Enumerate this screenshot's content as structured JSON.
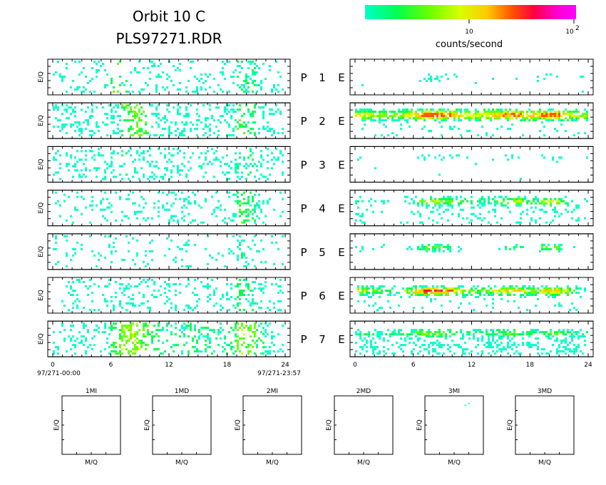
{
  "header": {
    "title_line1": "Orbit 10 C",
    "title_line2": "PLS97271.RDR"
  },
  "colorbar": {
    "tick_10": "10",
    "tick_100_base": "10",
    "tick_100_exp": "2",
    "label": "counts/second",
    "colors": [
      "#00ffc8",
      "#00ff50",
      "#66ff00",
      "#d8ff00",
      "#ffc800",
      "#ff5000",
      "#ff0040",
      "#ff00c8",
      "#ff00ff"
    ]
  },
  "chart_data": {
    "type": "heatmap",
    "colorbar_scale": "log",
    "colorbar_range": [
      1,
      100
    ],
    "colorbar_unit": "counts/second",
    "x_ticks": [
      "0",
      "6",
      "12",
      "18",
      "24"
    ],
    "x_range": [
      0,
      24
    ],
    "left_y_label": "E/Q",
    "left_start_time": "97/271-00:00",
    "left_end_time": "97/271-23:57",
    "rows": [
      {
        "p": "P",
        "n": "1",
        "e": "E",
        "left_density": [
          0.2,
          0.25,
          0.22,
          0.18,
          0.24,
          0.2,
          0.22,
          0.25,
          0.2,
          0.22,
          0.24,
          0.2,
          0.18,
          0.2,
          0.22,
          0.24,
          0.2,
          0.22,
          0.25,
          0.45,
          0.4,
          0.22,
          0.2,
          0.15
        ],
        "left_intensity": [
          0.05,
          0.05,
          0.05,
          0.05,
          0.05,
          0.05,
          0.2,
          0.1,
          0.05,
          0.05,
          0.05,
          0.05,
          0.05,
          0.05,
          0.05,
          0.05,
          0.05,
          0.05,
          0.05,
          0.1,
          0.1,
          0.05,
          0.05,
          0.05
        ],
        "right_band_pos": 0.5,
        "right_band_width": 0.1,
        "right_density": [
          0,
          0,
          0,
          0,
          0,
          0.05,
          0.25,
          0.3,
          0.3,
          0.1,
          0.05,
          0.0,
          0.0,
          0.0,
          0.05,
          0.2,
          0.2,
          0.05,
          0.1,
          0.15,
          0.15,
          0.05,
          0.05,
          0.1
        ],
        "right_intensity": [
          0,
          0,
          0,
          0,
          0,
          0,
          0.05,
          0.05,
          0.05,
          0,
          0,
          0,
          0,
          0,
          0,
          0.05,
          0.05,
          0,
          0,
          0.05,
          0.05,
          0,
          0,
          0
        ],
        "right_scatter": 0.01
      },
      {
        "p": "P",
        "n": "2",
        "e": "E",
        "left_density": [
          0.35,
          0.4,
          0.38,
          0.4,
          0.35,
          0.4,
          0.45,
          0.6,
          0.6,
          0.55,
          0.45,
          0.4,
          0.35,
          0.4,
          0.38,
          0.35,
          0.4,
          0.38,
          0.45,
          0.55,
          0.5,
          0.4,
          0.35,
          0.3
        ],
        "left_intensity": [
          0.05,
          0.05,
          0.05,
          0.05,
          0.05,
          0.05,
          0.05,
          0.2,
          0.25,
          0.2,
          0.05,
          0.05,
          0.05,
          0.05,
          0.05,
          0.05,
          0.05,
          0.05,
          0.05,
          0.2,
          0.15,
          0.05,
          0.05,
          0.05
        ],
        "right_band_pos": 0.3,
        "right_band_width": 0.2,
        "right_density": [
          0.95,
          0.95,
          0.9,
          0.85,
          0.8,
          0.9,
          0.95,
          0.95,
          0.95,
          0.95,
          0.9,
          0.85,
          0.85,
          0.9,
          0.95,
          0.95,
          0.95,
          0.9,
          0.9,
          0.95,
          0.95,
          0.9,
          0.9,
          0.85
        ],
        "right_intensity": [
          0.45,
          0.4,
          0.35,
          0.35,
          0.35,
          0.5,
          0.65,
          0.75,
          0.7,
          0.65,
          0.55,
          0.45,
          0.45,
          0.5,
          0.55,
          0.65,
          0.7,
          0.55,
          0.55,
          0.65,
          0.7,
          0.55,
          0.45,
          0.35
        ],
        "right_scatter": 0.08
      },
      {
        "p": "P",
        "n": "3",
        "e": "E",
        "left_density": [
          0.25,
          0.3,
          0.3,
          0.28,
          0.3,
          0.28,
          0.35,
          0.4,
          0.35,
          0.3,
          0.35,
          0.32,
          0.28,
          0.3,
          0.32,
          0.3,
          0.3,
          0.32,
          0.4,
          0.5,
          0.45,
          0.35,
          0.3,
          0.25
        ],
        "left_intensity": [
          0.05,
          0.05,
          0.05,
          0.05,
          0.05,
          0.05,
          0.05,
          0.1,
          0.05,
          0.05,
          0.05,
          0.05,
          0.05,
          0.05,
          0.05,
          0.05,
          0.05,
          0.05,
          0.05,
          0.1,
          0.1,
          0.05,
          0.05,
          0.05
        ],
        "right_band_pos": 0.25,
        "right_band_width": 0.1,
        "right_density": [
          0.1,
          0,
          0,
          0,
          0,
          0.15,
          0.2,
          0.3,
          0.25,
          0.2,
          0.15,
          0.1,
          0.05,
          0.1,
          0.1,
          0.2,
          0.25,
          0.1,
          0.1,
          0.15,
          0.2,
          0.1,
          0.05,
          0.05
        ],
        "right_intensity": [
          0.05,
          0,
          0,
          0,
          0,
          0.05,
          0.05,
          0.1,
          0.05,
          0.05,
          0.05,
          0,
          0,
          0,
          0,
          0.05,
          0.05,
          0,
          0,
          0.05,
          0.05,
          0,
          0,
          0
        ],
        "right_scatter": 0.01
      },
      {
        "p": "P",
        "n": "4",
        "e": "E",
        "left_density": [
          0.18,
          0.2,
          0.2,
          0.18,
          0.2,
          0.22,
          0.25,
          0.25,
          0.22,
          0.25,
          0.28,
          0.22,
          0.2,
          0.22,
          0.24,
          0.2,
          0.22,
          0.22,
          0.28,
          0.55,
          0.45,
          0.25,
          0.2,
          0.15
        ],
        "left_intensity": [
          0.05,
          0.05,
          0.05,
          0.05,
          0.05,
          0.05,
          0.05,
          0.05,
          0.05,
          0.05,
          0.05,
          0.05,
          0.05,
          0.05,
          0.05,
          0.05,
          0.05,
          0.05,
          0.05,
          0.2,
          0.15,
          0.05,
          0.05,
          0.05
        ],
        "right_band_pos": 0.28,
        "right_band_width": 0.16,
        "right_density": [
          0.3,
          0.2,
          0.15,
          0.15,
          0.15,
          0.3,
          0.7,
          0.85,
          0.8,
          0.75,
          0.65,
          0.5,
          0.4,
          0.45,
          0.55,
          0.65,
          0.75,
          0.55,
          0.5,
          0.7,
          0.75,
          0.55,
          0.3,
          0.2
        ],
        "right_intensity": [
          0.1,
          0.05,
          0.05,
          0.05,
          0.05,
          0.1,
          0.25,
          0.35,
          0.35,
          0.3,
          0.25,
          0.15,
          0.15,
          0.15,
          0.2,
          0.3,
          0.4,
          0.2,
          0.2,
          0.35,
          0.4,
          0.2,
          0.1,
          0.05
        ],
        "right_scatter": 0.14
      },
      {
        "p": "P",
        "n": "5",
        "e": "E",
        "left_density": [
          0.12,
          0.15,
          0.12,
          0.12,
          0.14,
          0.12,
          0.16,
          0.18,
          0.14,
          0.18,
          0.15,
          0.14,
          0.12,
          0.14,
          0.16,
          0.12,
          0.14,
          0.14,
          0.18,
          0.4,
          0.3,
          0.15,
          0.12,
          0.1
        ],
        "left_intensity": [
          0.05,
          0.05,
          0.05,
          0.05,
          0.05,
          0.05,
          0.05,
          0.05,
          0.05,
          0.05,
          0.05,
          0.05,
          0.05,
          0.05,
          0.05,
          0.05,
          0.05,
          0.05,
          0.05,
          0.1,
          0.05,
          0.05,
          0.05,
          0.05
        ],
        "right_band_pos": 0.35,
        "right_band_width": 0.12,
        "right_density": [
          0.25,
          0.2,
          0.15,
          0.1,
          0.05,
          0.2,
          0.55,
          0.7,
          0.7,
          0.55,
          0.35,
          0.1,
          0.05,
          0.1,
          0.2,
          0.45,
          0.55,
          0.2,
          0.2,
          0.55,
          0.6,
          0.3,
          0.05,
          0.0
        ],
        "right_intensity": [
          0.05,
          0.05,
          0.05,
          0.05,
          0.05,
          0.05,
          0.2,
          0.3,
          0.3,
          0.2,
          0.1,
          0.05,
          0.05,
          0.05,
          0.05,
          0.2,
          0.25,
          0.05,
          0.05,
          0.25,
          0.3,
          0.1,
          0.05,
          0
        ],
        "right_scatter": 0.0
      },
      {
        "p": "P",
        "n": "6",
        "e": "E",
        "left_density": [
          0.22,
          0.25,
          0.25,
          0.22,
          0.25,
          0.25,
          0.3,
          0.3,
          0.28,
          0.3,
          0.32,
          0.28,
          0.25,
          0.28,
          0.3,
          0.25,
          0.28,
          0.28,
          0.32,
          0.55,
          0.45,
          0.3,
          0.25,
          0.2
        ],
        "left_intensity": [
          0.05,
          0.05,
          0.05,
          0.05,
          0.05,
          0.05,
          0.05,
          0.05,
          0.05,
          0.05,
          0.05,
          0.05,
          0.05,
          0.05,
          0.05,
          0.05,
          0.05,
          0.05,
          0.05,
          0.15,
          0.1,
          0.05,
          0.05,
          0.05
        ],
        "right_band_pos": 0.35,
        "right_band_width": 0.18,
        "right_density": [
          0.85,
          0.8,
          0.7,
          0.6,
          0.55,
          0.75,
          0.9,
          0.95,
          0.95,
          0.9,
          0.8,
          0.7,
          0.65,
          0.7,
          0.8,
          0.9,
          0.9,
          0.8,
          0.8,
          0.9,
          0.95,
          0.8,
          0.6,
          0.4
        ],
        "right_intensity": [
          0.4,
          0.3,
          0.2,
          0.15,
          0.15,
          0.35,
          0.55,
          0.75,
          0.7,
          0.6,
          0.45,
          0.3,
          0.25,
          0.3,
          0.4,
          0.5,
          0.55,
          0.35,
          0.35,
          0.5,
          0.55,
          0.4,
          0.2,
          0.1
        ],
        "right_scatter": 0.06
      },
      {
        "p": "P",
        "n": "7",
        "e": "E",
        "left_density": [
          0.3,
          0.35,
          0.3,
          0.3,
          0.3,
          0.35,
          0.6,
          0.75,
          0.75,
          0.65,
          0.55,
          0.45,
          0.4,
          0.45,
          0.5,
          0.45,
          0.45,
          0.45,
          0.55,
          0.75,
          0.7,
          0.45,
          0.35,
          0.25
        ],
        "left_intensity": [
          0.05,
          0.05,
          0.05,
          0.05,
          0.05,
          0.05,
          0.2,
          0.3,
          0.3,
          0.25,
          0.15,
          0.1,
          0.1,
          0.1,
          0.15,
          0.1,
          0.1,
          0.1,
          0.15,
          0.3,
          0.25,
          0.1,
          0.05,
          0.05
        ],
        "right_band_pos": 0.3,
        "right_band_width": 0.16,
        "right_density": [
          0.65,
          0.6,
          0.6,
          0.55,
          0.55,
          0.6,
          0.75,
          0.8,
          0.8,
          0.75,
          0.65,
          0.6,
          0.55,
          0.6,
          0.65,
          0.75,
          0.75,
          0.65,
          0.6,
          0.75,
          0.75,
          0.65,
          0.55,
          0.5
        ],
        "right_intensity": [
          0.15,
          0.15,
          0.15,
          0.15,
          0.15,
          0.15,
          0.25,
          0.3,
          0.3,
          0.25,
          0.2,
          0.15,
          0.15,
          0.15,
          0.2,
          0.25,
          0.25,
          0.2,
          0.15,
          0.25,
          0.25,
          0.2,
          0.15,
          0.15
        ],
        "right_scatter": 0.3
      }
    ],
    "mq_panels": [
      {
        "title": "1MI",
        "ylabel": "E/Q",
        "xlabel": "M/Q",
        "points": []
      },
      {
        "title": "1MD",
        "ylabel": "E/Q",
        "xlabel": "M/Q",
        "points": []
      },
      {
        "title": "2MI",
        "ylabel": "E/Q",
        "xlabel": "M/Q",
        "points": []
      },
      {
        "title": "2MD",
        "ylabel": "E/Q",
        "xlabel": "M/Q",
        "points": []
      },
      {
        "title": "3MI",
        "ylabel": "E/Q",
        "xlabel": "M/Q",
        "points": [
          [
            0.68,
            0.85
          ],
          [
            0.74,
            0.88
          ]
        ]
      },
      {
        "title": "3MD",
        "ylabel": "E/Q",
        "xlabel": "M/Q",
        "points": []
      }
    ]
  }
}
